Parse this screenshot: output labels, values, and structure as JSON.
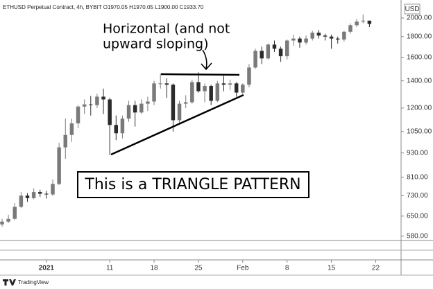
{
  "chart_data": {
    "type": "candlestick",
    "title": "ETHUSD Perpetual Contract, 4h, BYBIT  O1970.05 H1970.05 L1900.00 C1933.70",
    "currency": "USD",
    "brand": "TradingView",
    "annotations": [
      "Horizontal (and not",
      "upward sloping)",
      "This is a TRIANGLE PATTERN"
    ],
    "log_scale": true,
    "up_color": "#7a7a7a",
    "down_color": "#2b2b2b",
    "x": [
      "2020-12-25",
      "2020-12-26",
      "2020-12-27",
      "2020-12-28",
      "2020-12-29",
      "2020-12-30",
      "2020-12-31",
      "2021-01-01",
      "2021-01-02",
      "2021-01-03",
      "2021-01-04",
      "2021-01-05",
      "2021-01-06",
      "2021-01-07",
      "2021-01-08",
      "2021-01-09",
      "2021-01-10",
      "2021-01-11",
      "2021-01-12",
      "2021-01-13",
      "2021-01-14",
      "2021-01-15",
      "2021-01-16",
      "2021-01-17",
      "2021-01-18",
      "2021-01-19",
      "2021-01-20",
      "2021-01-21",
      "2021-01-22",
      "2021-01-23",
      "2021-01-24",
      "2021-01-25",
      "2021-01-26",
      "2021-01-27",
      "2021-01-28",
      "2021-01-29",
      "2021-01-30",
      "2021-01-31",
      "2021-02-01",
      "2021-02-02",
      "2021-02-03",
      "2021-02-04",
      "2021-02-05",
      "2021-02-06",
      "2021-02-07",
      "2021-02-08",
      "2021-02-09",
      "2021-02-10",
      "2021-02-11",
      "2021-02-12",
      "2021-02-13",
      "2021-02-14",
      "2021-02-15",
      "2021-02-16",
      "2021-02-17",
      "2021-02-18",
      "2021-02-19",
      "2021-02-20",
      "2021-02-21"
    ],
    "open": [
      620,
      630,
      640,
      685,
      730,
      720,
      745,
      738,
      735,
      780,
      960,
      1030,
      1100,
      1210,
      1225,
      1220,
      1280,
      1260,
      1090,
      1040,
      1130,
      1220,
      1170,
      1230,
      1245,
      1380,
      1380,
      1370,
      1120,
      1230,
      1240,
      1390,
      1320,
      1360,
      1250,
      1380,
      1370,
      1380,
      1310,
      1370,
      1510,
      1660,
      1590,
      1720,
      1680,
      1610,
      1760,
      1780,
      1740,
      1780,
      1840,
      1810,
      1800,
      1780,
      1770,
      1850,
      1920,
      1960,
      1970.05
    ],
    "high": [
      640,
      655,
      700,
      745,
      740,
      760,
      755,
      750,
      800,
      985,
      1130,
      1130,
      1220,
      1260,
      1285,
      1300,
      1340,
      1270,
      1150,
      1150,
      1250,
      1250,
      1260,
      1280,
      1400,
      1460,
      1420,
      1380,
      1250,
      1290,
      1410,
      1470,
      1380,
      1370,
      1400,
      1440,
      1410,
      1390,
      1380,
      1540,
      1680,
      1700,
      1730,
      1760,
      1700,
      1770,
      1820,
      1800,
      1810,
      1860,
      1870,
      1830,
      1820,
      1800,
      1860,
      1940,
      1990,
      2040,
      1970.05
    ],
    "low": [
      612,
      625,
      635,
      680,
      705,
      715,
      725,
      718,
      728,
      775,
      900,
      990,
      1070,
      1160,
      1150,
      1200,
      1160,
      920,
      1000,
      1010,
      1110,
      1080,
      1160,
      1180,
      1220,
      1340,
      1270,
      1050,
      1100,
      1200,
      1230,
      1310,
      1240,
      1220,
      1240,
      1320,
      1330,
      1280,
      1300,
      1350,
      1500,
      1540,
      1580,
      1650,
      1560,
      1580,
      1710,
      1690,
      1720,
      1760,
      1780,
      1760,
      1680,
      1730,
      1750,
      1830,
      1900,
      1940,
      1900
    ],
    "close": [
      630,
      640,
      685,
      730,
      720,
      745,
      738,
      735,
      780,
      960,
      1030,
      1100,
      1210,
      1225,
      1220,
      1280,
      1260,
      1090,
      1040,
      1130,
      1220,
      1170,
      1230,
      1245,
      1380,
      1380,
      1370,
      1120,
      1230,
      1240,
      1390,
      1320,
      1360,
      1250,
      1380,
      1370,
      1380,
      1310,
      1370,
      1510,
      1660,
      1590,
      1720,
      1680,
      1610,
      1760,
      1780,
      1740,
      1780,
      1840,
      1810,
      1800,
      1780,
      1770,
      1850,
      1920,
      1960,
      1970,
      1933.7
    ],
    "xlim": [
      "2020-12-25",
      "2021-02-26"
    ],
    "xticks": [
      {
        "value": "2021-01-01",
        "label": "2021"
      },
      {
        "value": "2021-01-11",
        "label": "11"
      },
      {
        "value": "2021-01-18",
        "label": "18"
      },
      {
        "value": "2021-01-25",
        "label": "25"
      },
      {
        "value": "2021-02-01",
        "label": "Feb"
      },
      {
        "value": "2021-02-08",
        "label": "8"
      },
      {
        "value": "2021-02-15",
        "label": "15"
      },
      {
        "value": "2021-02-22",
        "label": "22"
      }
    ],
    "ylim": [
      566,
      2215
    ],
    "yticks": [
      {
        "value": 580,
        "label": "580.00"
      },
      {
        "value": 650,
        "label": "650.00"
      },
      {
        "value": 730,
        "label": "730.00"
      },
      {
        "value": 810,
        "label": "810.00"
      },
      {
        "value": 930,
        "label": "930.00"
      },
      {
        "value": 1050,
        "label": "1050.00"
      },
      {
        "value": 1200,
        "label": "1200.00"
      },
      {
        "value": 1400,
        "label": "1400.00"
      },
      {
        "value": 1600,
        "label": "1600.00"
      },
      {
        "value": 1800,
        "label": "1800.00"
      },
      {
        "value": 2000,
        "label": "2000.00"
      }
    ]
  }
}
